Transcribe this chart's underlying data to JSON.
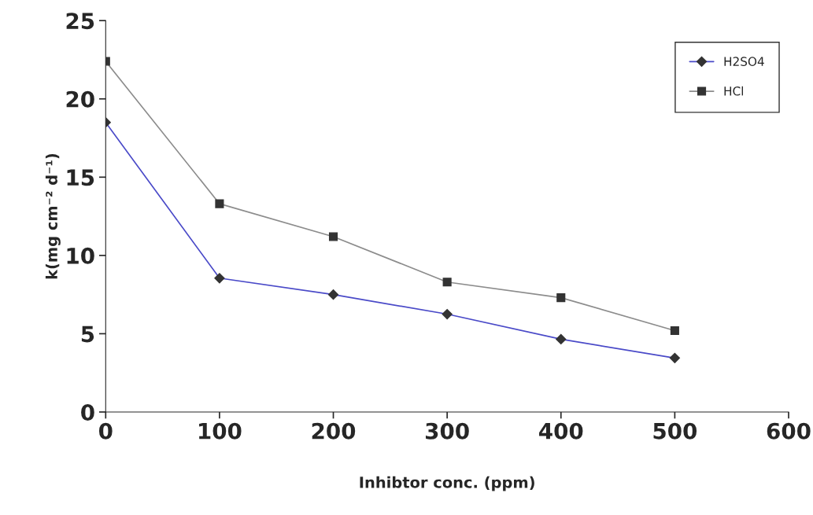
{
  "chart_data": {
    "type": "line",
    "xlabel": "Inhibtor conc. (ppm)",
    "ylabel": "k(mg cm⁻² d⁻¹)",
    "x": [
      0,
      100,
      200,
      300,
      400,
      500
    ],
    "series": [
      {
        "name": "H2SO4",
        "color": "#4a4ac8",
        "marker": "diamond",
        "values": [
          18.5,
          8.55,
          7.5,
          6.25,
          4.65,
          3.45
        ]
      },
      {
        "name": "HCl",
        "color": "#8c8c8c",
        "marker": "square",
        "values": [
          22.4,
          13.3,
          11.2,
          8.3,
          7.3,
          5.2
        ]
      }
    ],
    "xlim": [
      0,
      600
    ],
    "xticks": [
      0,
      100,
      200,
      300,
      400,
      500,
      600
    ],
    "ylim": [
      0,
      25
    ],
    "yticks": [
      0,
      5,
      10,
      15,
      20,
      25
    ],
    "grid": false,
    "legend": "top right"
  }
}
